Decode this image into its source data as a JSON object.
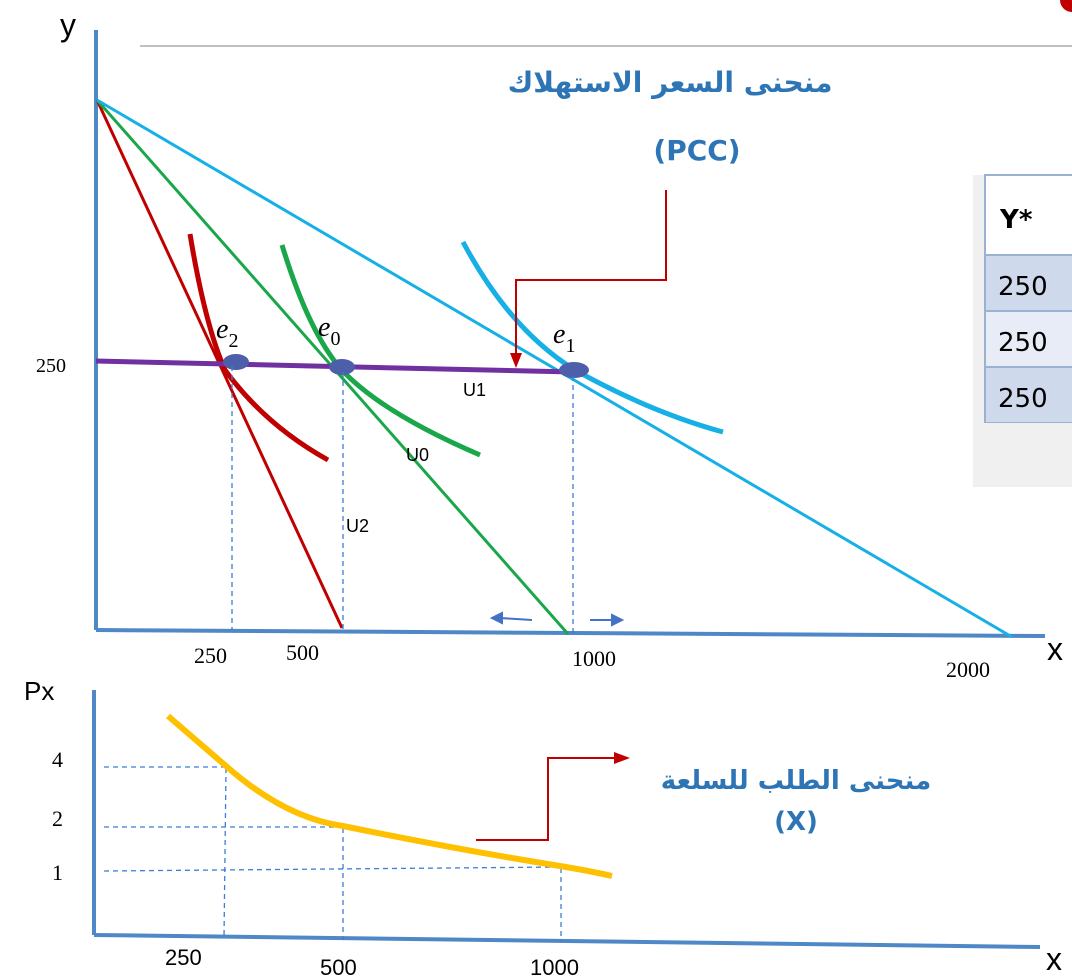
{
  "upper_graph": {
    "y_axis_label": "y",
    "x_axis_label": "x",
    "y_tick": "250",
    "x_ticks": [
      "250",
      "500",
      "1000",
      "2000"
    ],
    "points": [
      {
        "main": "e",
        "sub": "2"
      },
      {
        "main": "e",
        "sub": "0"
      },
      {
        "main": "e",
        "sub": "1"
      }
    ],
    "curve_labels": {
      "u1": "U1",
      "u0": "U0",
      "u2": "U2"
    },
    "pcc_label_arabic": "منحنى السعر الاستهلاك",
    "pcc_label_abbr": "(PCC)"
  },
  "lower_graph": {
    "y_axis_label": "Px",
    "x_axis_label": "x",
    "y_ticks": [
      "4",
      "2",
      "1"
    ],
    "x_ticks": [
      "250",
      "500",
      "1000"
    ],
    "demand_label_arabic": "منحنى الطلب للسلعة",
    "demand_label_abbr": "(X)"
  },
  "table": {
    "header": "Y*",
    "rows": [
      "250",
      "250",
      "250"
    ]
  },
  "colors": {
    "axis": "#4f88c6",
    "purple": "#7030a0",
    "red": "#c00000",
    "green": "#19a74a",
    "cyan": "#17b0e6",
    "orange": "#ffc000",
    "label_blue": "#2e75b6",
    "dark_red": "#c00000",
    "point": "#4d5fa8"
  }
}
